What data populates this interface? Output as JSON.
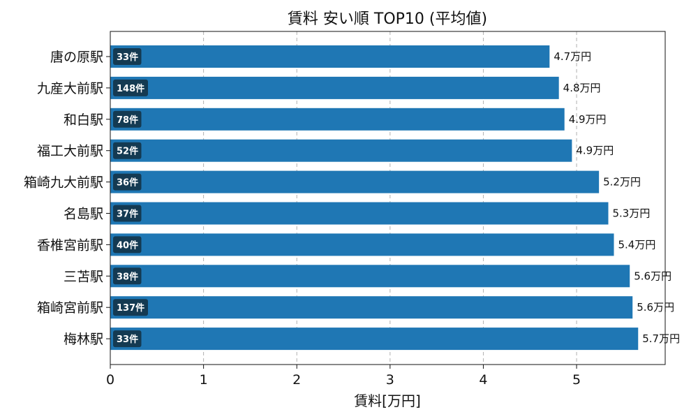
{
  "chart_data": {
    "type": "bar",
    "orientation": "horizontal",
    "title": "賃料 安い順 TOP10 (平均値)",
    "xlabel": "賃料[万円]",
    "ylabel": "",
    "xlim": [
      0,
      5.95
    ],
    "xticks": [
      0,
      1,
      2,
      3,
      4,
      5
    ],
    "grid": "x-dashed",
    "value_unit": "万円",
    "count_unit": "件",
    "categories": [
      "唐の原駅",
      "九産大前駅",
      "和白駅",
      "福工大前駅",
      "箱崎九大前駅",
      "名島駅",
      "香椎宮前駅",
      "三苫駅",
      "箱崎宮前駅",
      "梅林駅"
    ],
    "values": [
      4.7,
      4.8,
      4.9,
      4.9,
      5.2,
      5.3,
      5.4,
      5.6,
      5.6,
      5.7
    ],
    "bar_lengths": [
      4.71,
      4.81,
      4.87,
      4.95,
      5.24,
      5.34,
      5.4,
      5.57,
      5.6,
      5.66
    ],
    "value_labels": [
      "4.7万円",
      "4.8万円",
      "4.9万円",
      "4.9万円",
      "5.2万円",
      "5.3万円",
      "5.4万円",
      "5.6万円",
      "5.6万円",
      "5.7万円"
    ],
    "counts": [
      33,
      148,
      78,
      52,
      36,
      37,
      40,
      38,
      137,
      33
    ],
    "count_labels": [
      "33件",
      "148件",
      "78件",
      "52件",
      "36件",
      "37件",
      "40件",
      "38件",
      "137件",
      "33件"
    ],
    "bar_color": "#1f77b4",
    "count_box_color": "#143a52"
  }
}
